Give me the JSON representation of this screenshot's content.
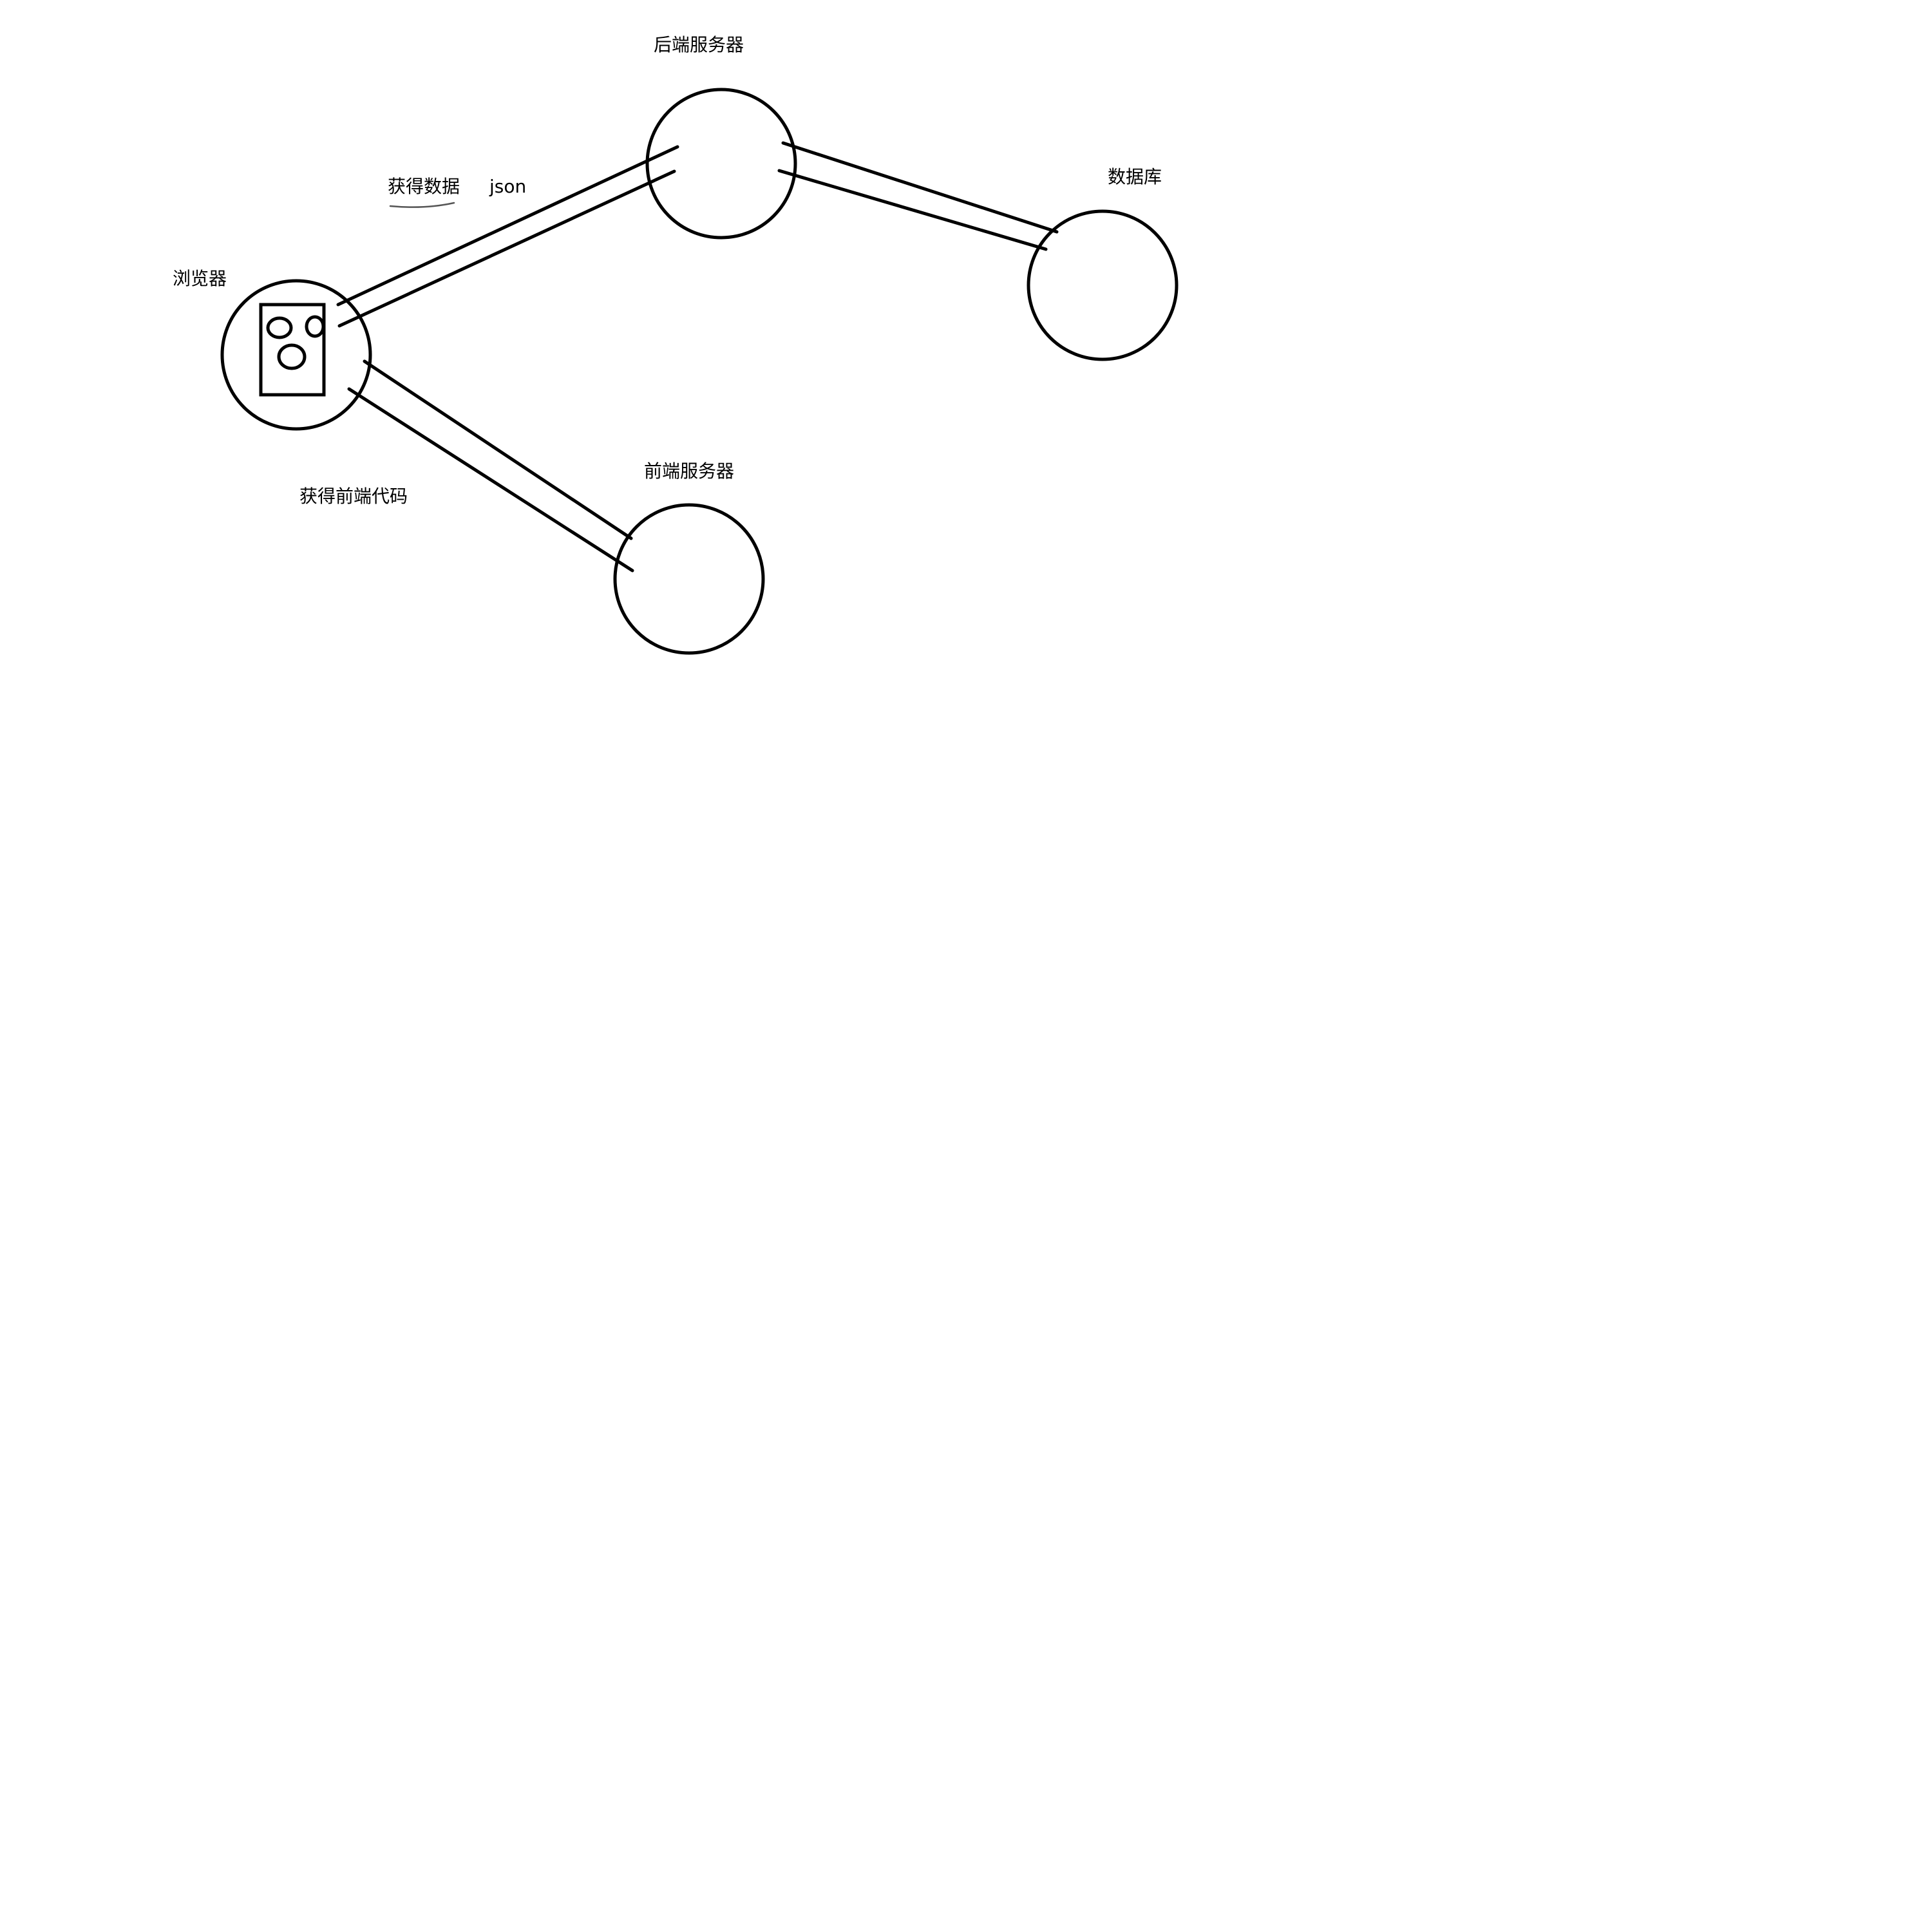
{
  "nodes": {
    "browser": {
      "label": "浏览器"
    },
    "backend": {
      "label": "后端服务器"
    },
    "database": {
      "label": "数据库"
    },
    "frontend": {
      "label": "前端服务器"
    }
  },
  "edges": {
    "browser_backend": {
      "label": "获得数据",
      "note": "json"
    },
    "browser_frontend": {
      "label": "获得前端代码"
    }
  },
  "icons": {
    "browser": "browser-window-icon"
  },
  "colors": {
    "stroke": "#000000",
    "background": "#ffffff"
  }
}
